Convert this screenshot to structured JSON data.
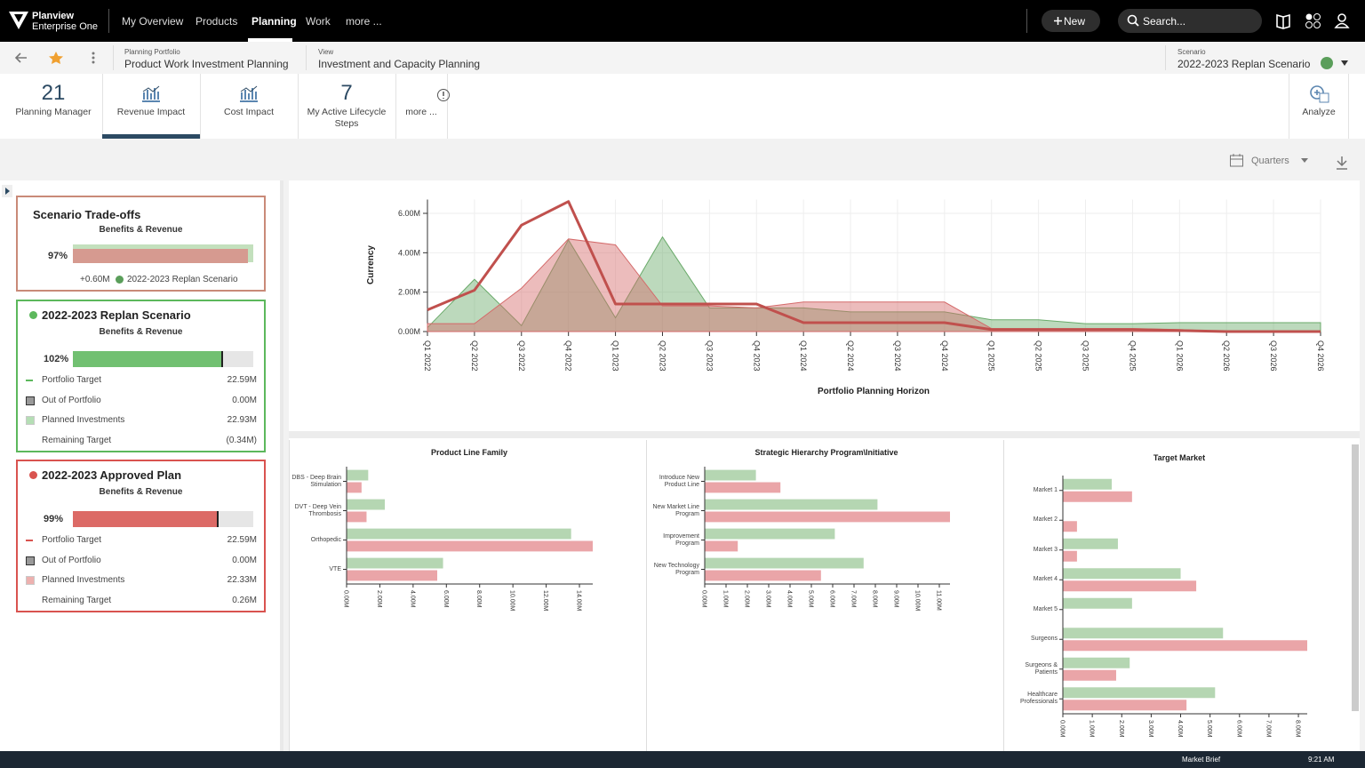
{
  "nav": {
    "brand": [
      "Planview",
      "Enterprise One"
    ],
    "menu": [
      "My Overview",
      "Products",
      "Planning",
      "Work",
      "more ..."
    ],
    "new": "New",
    "search": "Search..."
  },
  "context": {
    "portfolio_label": "Planning Portfolio",
    "portfolio": "Product Work Investment Planning",
    "view_label": "View",
    "view": "Investment and Capacity Planning",
    "scenario_label": "Scenario",
    "scenario": "2022-2023 Replan Scenario"
  },
  "tiles": [
    {
      "value": "21",
      "label": "Planning Manager"
    },
    {
      "label": "Revenue Impact"
    },
    {
      "label": "Cost Impact"
    },
    {
      "value": "7",
      "label": "My Active Lifecycle Steps"
    },
    {
      "label": "more ..."
    }
  ],
  "analyze": "Analyze",
  "period": "Quarters",
  "tradeoff": {
    "title": "Scenario Trade-offs",
    "subtitle": "Benefits & Revenue",
    "percent": {
      "value": 97,
      "label": "97%"
    },
    "delta": "+0.60M",
    "scenario": "2022-2023 Replan Scenario"
  },
  "scenarios": [
    {
      "title": "2022-2023 Replan Scenario",
      "color": "#5cb85c",
      "subtitle": "Benefits & Revenue",
      "percent": {
        "value": 102,
        "label": "102%"
      },
      "rows": [
        [
          "Portfolio Target",
          "22.59M"
        ],
        [
          "Out of Portfolio",
          "0.00M"
        ],
        [
          "Planned Investments",
          "22.93M"
        ],
        [
          "Remaining Target",
          "(0.34M)"
        ]
      ]
    },
    {
      "title": "2022-2023 Approved Plan",
      "color": "#d9534f",
      "subtitle": "Benefits & Revenue",
      "percent": {
        "value": 99,
        "label": "99%"
      },
      "rows": [
        [
          "Portfolio Target",
          "22.59M"
        ],
        [
          "Out of Portfolio",
          "0.00M"
        ],
        [
          "Planned Investments",
          "22.33M"
        ],
        [
          "Remaining Target",
          "0.26M"
        ]
      ]
    }
  ],
  "taskbar": {
    "app": "Market Brief",
    "time": "9:21 AM"
  },
  "chart_data": [
    {
      "type": "line",
      "y_label": "Currency",
      "x_label": "Portfolio Planning Horizon",
      "categories": [
        "Q1 2022",
        "Q2 2022",
        "Q3 2022",
        "Q4 2022",
        "Q1 2023",
        "Q2 2023",
        "Q3 2023",
        "Q4 2023",
        "Q1 2024",
        "Q2 2024",
        "Q3 2024",
        "Q4 2024",
        "Q1 2025",
        "Q2 2025",
        "Q3 2025",
        "Q4 2025",
        "Q1 2026",
        "Q2 2026",
        "Q3 2026",
        "Q4 2026"
      ],
      "series": [
        {
          "type": "area",
          "color": "#6aaa6a",
          "values": [
            0.2,
            2.65,
            0.3,
            4.65,
            0.7,
            4.8,
            1.2,
            1.2,
            1.2,
            1.0,
            1.0,
            1.0,
            0.6,
            0.6,
            0.4,
            0.4,
            0.45,
            0.45,
            0.45,
            0.45
          ]
        },
        {
          "type": "area",
          "color": "#d46a6a",
          "values": [
            0.4,
            0.4,
            2.2,
            4.7,
            4.4,
            1.3,
            1.3,
            1.2,
            1.5,
            1.5,
            1.5,
            1.5,
            0.15,
            0.15,
            0.15,
            0.15,
            0.1,
            0,
            0,
            0
          ]
        },
        {
          "type": "line",
          "color": "#c0504d",
          "values": [
            1.1,
            2.1,
            5.4,
            6.6,
            1.4,
            1.4,
            1.4,
            1.4,
            0.45,
            0.45,
            0.45,
            0.45,
            0.1,
            0.1,
            0.1,
            0.1,
            0.05,
            0,
            0,
            0
          ]
        }
      ],
      "ylim": [
        0,
        6.7
      ],
      "yticks": [
        {
          "value": 0,
          "label": "0.00M"
        },
        {
          "value": 2,
          "label": "2.00M"
        },
        {
          "value": 4,
          "label": "4.00M"
        },
        {
          "value": 6,
          "label": "6.00M"
        }
      ],
      "grid": true
    },
    {
      "type": "bar",
      "orientation": "horizontal",
      "title": "Product Line Family",
      "categories": [
        "DBS - Deep Brain Stimulation",
        "DVT - Deep Vein Thrombosis",
        "Orthopedic",
        "VTE"
      ],
      "series": [
        {
          "color": "#b5d6b2",
          "values": [
            1.3,
            2.3,
            13.5,
            5.8
          ]
        },
        {
          "color": "#eaa5a8",
          "values": [
            0.9,
            1.2,
            14.8,
            5.45
          ]
        }
      ],
      "xlim": [
        0,
        14.8
      ],
      "xticks": [
        {
          "value": 0,
          "label": "0.00M"
        },
        {
          "value": 2,
          "label": "2.00M"
        },
        {
          "value": 4,
          "label": "4.00M"
        },
        {
          "value": 6,
          "label": "6.00M"
        },
        {
          "value": 8,
          "label": "8.00M"
        },
        {
          "value": 10,
          "label": "10.00M"
        },
        {
          "value": 12,
          "label": "12.00M"
        },
        {
          "value": 14,
          "label": "14.00M"
        }
      ]
    },
    {
      "type": "bar",
      "orientation": "horizontal",
      "title": "Strategic Hierarchy Program\\Initiative",
      "categories": [
        "Introduce New Product Line",
        "New Market Line Program",
        "Improvement Program",
        "New Technology Program"
      ],
      "series": [
        {
          "color": "#b5d6b2",
          "values": [
            2.4,
            8.1,
            6.1,
            7.45
          ]
        },
        {
          "color": "#eaa5a8",
          "values": [
            3.55,
            11.5,
            1.55,
            5.45
          ]
        }
      ],
      "xlim": [
        0,
        11.5
      ],
      "xticks": [
        {
          "value": 0,
          "label": "0.00M"
        },
        {
          "value": 1,
          "label": "1.00M"
        },
        {
          "value": 2,
          "label": "2.00M"
        },
        {
          "value": 3,
          "label": "3.00M"
        },
        {
          "value": 4,
          "label": "4.00M"
        },
        {
          "value": 5,
          "label": "5.00M"
        },
        {
          "value": 6,
          "label": "6.00M"
        },
        {
          "value": 7,
          "label": "7.00M"
        },
        {
          "value": 8,
          "label": "8.00M"
        },
        {
          "value": 9,
          "label": "9.00M"
        },
        {
          "value": 10,
          "label": "10.00M"
        },
        {
          "value": 11,
          "label": "11.00M"
        }
      ]
    },
    {
      "type": "bar",
      "orientation": "horizontal",
      "title": "Target Market",
      "categories": [
        "Market 1",
        "Market 2",
        "Market 3",
        "Market 4",
        "Market 5",
        "Surgeons",
        "Surgeons & Patients",
        "Healthcare Professionals"
      ],
      "series": [
        {
          "color": "#b5d6b2",
          "values": [
            1.66,
            null,
            1.87,
            4.0,
            2.35,
            5.44,
            2.27,
            5.17
          ]
        },
        {
          "color": "#eaa5a8",
          "values": [
            2.35,
            0.48,
            0.48,
            4.53,
            null,
            8.3,
            1.81,
            4.2
          ]
        }
      ],
      "xlim": [
        0,
        8.3
      ],
      "xticks": [
        {
          "value": 0,
          "label": "0.00M"
        },
        {
          "value": 1,
          "label": "1.00M"
        },
        {
          "value": 2,
          "label": "2.00M"
        },
        {
          "value": 3,
          "label": "3.00M"
        },
        {
          "value": 4,
          "label": "4.00M"
        },
        {
          "value": 5,
          "label": "5.00M"
        },
        {
          "value": 6,
          "label": "6.00M"
        },
        {
          "value": 7,
          "label": "7.00M"
        },
        {
          "value": 8,
          "label": "8.00M"
        }
      ]
    }
  ]
}
